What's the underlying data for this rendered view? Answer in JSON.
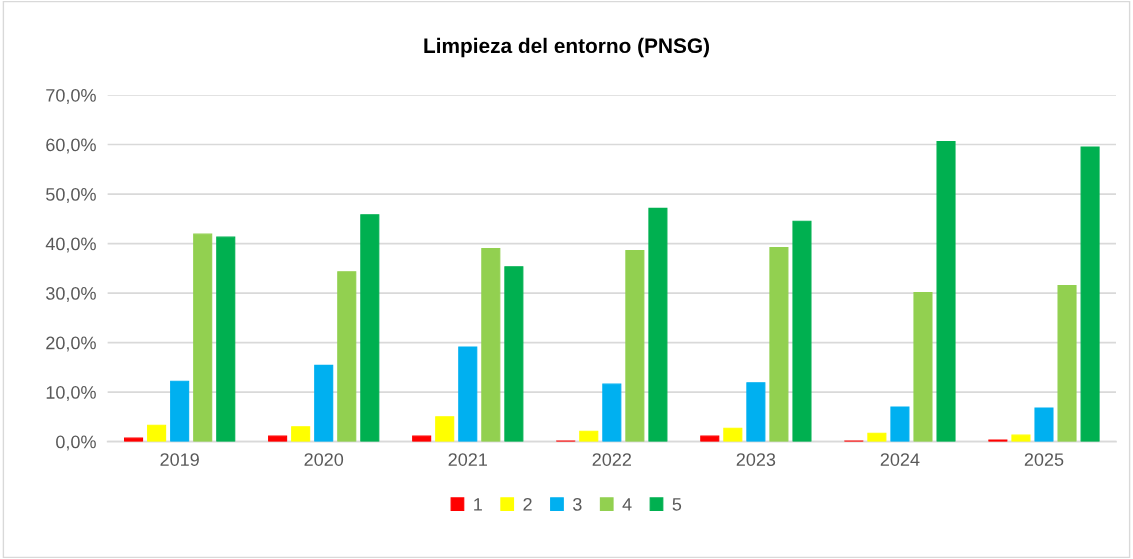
{
  "chart_data": {
    "type": "bar",
    "title": "Limpieza del entorno (PNSG)",
    "categories": [
      "2019",
      "2020",
      "2021",
      "2022",
      "2023",
      "2024",
      "2025"
    ],
    "series": [
      {
        "name": "1",
        "color": "#ff0000",
        "values": [
          0.7,
          1.1,
          1.1,
          0.1,
          1.1,
          0.1,
          0.3
        ]
      },
      {
        "name": "2",
        "color": "#ffff00",
        "values": [
          3.3,
          3.0,
          5.0,
          2.1,
          2.7,
          1.7,
          1.3
        ]
      },
      {
        "name": "3",
        "color": "#00b0f0",
        "values": [
          12.2,
          15.4,
          19.1,
          11.6,
          11.9,
          7.0,
          6.8
        ]
      },
      {
        "name": "4",
        "color": "#92d050",
        "values": [
          41.9,
          34.3,
          39.0,
          38.6,
          39.2,
          30.1,
          31.5
        ]
      },
      {
        "name": "5",
        "color": "#00b050",
        "values": [
          41.3,
          45.8,
          35.3,
          47.1,
          44.5,
          60.6,
          59.5
        ]
      }
    ],
    "ylim": [
      0,
      70
    ],
    "yticks": [
      {
        "value": 0,
        "label": "0,0%"
      },
      {
        "value": 10,
        "label": "10,0%"
      },
      {
        "value": 20,
        "label": "20,0%"
      },
      {
        "value": 30,
        "label": "30,0%"
      },
      {
        "value": 40,
        "label": "40,0%"
      },
      {
        "value": 50,
        "label": "50,0%"
      },
      {
        "value": 60,
        "label": "60,0%"
      },
      {
        "value": 70,
        "label": "70,0%"
      }
    ],
    "grid": "y",
    "legend": "bottom"
  }
}
